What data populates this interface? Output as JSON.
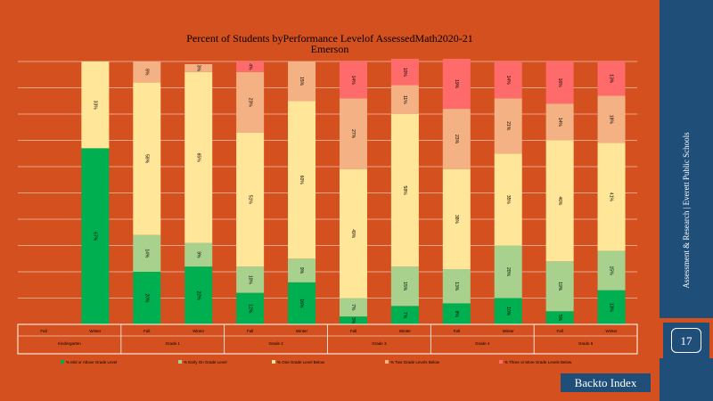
{
  "sidebar": {
    "text": "Assessment & Research | Everett Public Schools"
  },
  "page": {
    "number": "17"
  },
  "nav": {
    "back_label": "Backto Index"
  },
  "chart_data": {
    "type": "bar",
    "stacked": true,
    "title": "Percent of Students byPerformance Levelof AssessedMath2020-21",
    "subtitle": "Emerson",
    "categories": [
      {
        "term": "Fall",
        "grade": "Kindergarten"
      },
      {
        "term": "Winter",
        "grade": "Kindergarten"
      },
      {
        "term": "Fall",
        "grade": "Grade 1"
      },
      {
        "term": "Winter",
        "grade": "Grade 1"
      },
      {
        "term": "Fall",
        "grade": "Grade 2"
      },
      {
        "term": "Winter",
        "grade": "Grade 2"
      },
      {
        "term": "Fall",
        "grade": "Grade 3"
      },
      {
        "term": "Winter",
        "grade": "Grade 3"
      },
      {
        "term": "Fall",
        "grade": "Grade 4"
      },
      {
        "term": "Winter",
        "grade": "Grade 4"
      },
      {
        "term": "Fall",
        "grade": "Grade 5"
      },
      {
        "term": "Winter",
        "grade": "Grade 5"
      }
    ],
    "groups": [
      {
        "label": "Kindergarten",
        "span": [
          0,
          1
        ]
      },
      {
        "label": "Grade 1",
        "span": [
          2,
          3
        ]
      },
      {
        "label": "Grade 2",
        "span": [
          4,
          5
        ]
      },
      {
        "label": "Grade 3",
        "span": [
          6,
          7
        ]
      },
      {
        "label": "Grade 4",
        "span": [
          8,
          9
        ]
      },
      {
        "label": "Grade 5",
        "span": [
          10,
          11
        ]
      }
    ],
    "series": [
      {
        "name": "% Mid or Above Grade Level",
        "color": "#00b050",
        "values": [
          null,
          67,
          20,
          22,
          12,
          16,
          3,
          7,
          8,
          10,
          5,
          13
        ],
        "labels": [
          "",
          "67%",
          "20%",
          "22%",
          "12%",
          "16%",
          "3%",
          "7%",
          "8%",
          "10%",
          "5%",
          "13%"
        ]
      },
      {
        "name": "% Early On Grade Level",
        "color": "#a9d18e",
        "values": [
          null,
          0,
          14,
          9,
          10,
          9,
          7,
          15,
          13,
          20,
          19,
          15
        ],
        "labels": [
          "",
          "",
          "14%",
          "9%",
          "10%",
          "9%",
          "7%",
          "15%",
          "13%",
          "20%",
          "19%",
          "15%"
        ]
      },
      {
        "name": "% One Grade Level Below",
        "color": "#ffe699",
        "values": [
          null,
          33,
          58,
          65,
          51,
          60,
          49,
          58,
          38,
          35,
          46,
          41
        ],
        "labels": [
          "",
          "33%",
          "58%",
          "65%",
          "51%",
          "60%",
          "49%",
          "58%",
          "38%",
          "35%",
          "46%",
          "41%"
        ]
      },
      {
        "name": "% Two Grade Levels Below",
        "color": "#f4b183",
        "values": [
          null,
          0,
          8,
          3,
          23,
          15,
          27,
          11,
          23,
          21,
          14,
          18
        ],
        "labels": [
          "",
          "",
          "8%",
          "3%",
          "23%",
          "15%",
          "27%",
          "11%",
          "23%",
          "21%",
          "14%",
          "18%"
        ]
      },
      {
        "name": "% Three or More Grade Levels Below",
        "color": "#ff6b6b",
        "values": [
          null,
          0,
          0,
          0,
          4,
          0,
          14,
          10,
          19,
          14,
          16,
          13
        ],
        "labels": [
          "",
          "",
          "",
          "",
          "4%",
          "",
          "14%",
          "10%",
          "19%",
          "14%",
          "16%",
          "13%"
        ]
      }
    ],
    "ylim": [
      0,
      100
    ],
    "grid": true,
    "legend_position": "bottom"
  }
}
